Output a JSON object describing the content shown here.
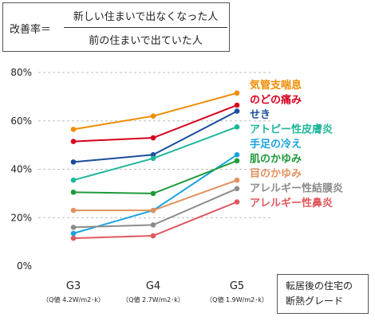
{
  "formula": {
    "label": "改善率＝",
    "numerator": "新しい住まいで出なくなった人",
    "denominator": "前の住まいで出ていた人"
  },
  "grade_box": {
    "line1": "転居後の住宅の",
    "line2": "断熱グレード"
  },
  "chart_data": {
    "type": "line",
    "title": "",
    "xlabel": "",
    "ylabel": "",
    "ylim": [
      0,
      80
    ],
    "yticks": [
      0,
      20,
      40,
      60,
      80
    ],
    "ytick_labels": [
      "0%",
      "20%",
      "40%",
      "60%",
      "80%"
    ],
    "grid": "horizontal-dashed",
    "categories": [
      "G3",
      "G4",
      "G5"
    ],
    "category_sublabels": [
      "（Q値 4.2W/m2･k）",
      "（Q値 2.7W/m2･k）",
      "（Q値 1.9W/m2･k）"
    ],
    "legend_placement": "right",
    "series": [
      {
        "name": "気管支喘息",
        "color": "#f08c00",
        "values": [
          56.5,
          62,
          71.5
        ]
      },
      {
        "name": "のどの痛み",
        "color": "#d7001d",
        "values": [
          51.5,
          53,
          66.5
        ]
      },
      {
        "name": "せき",
        "color": "#1a4e9c",
        "values": [
          43,
          46,
          64
        ]
      },
      {
        "name": "アトピー性皮膚炎",
        "color": "#1fb79a",
        "values": [
          35.5,
          44.5,
          57.5
        ]
      },
      {
        "name": "手足の冷え",
        "color": "#1aa3de",
        "values": [
          13.5,
          23,
          46
        ]
      },
      {
        "name": "肌のかゆみ",
        "color": "#1e9a3a",
        "values": [
          30.5,
          30,
          43.5
        ]
      },
      {
        "name": "目のかゆみ",
        "color": "#e3915f",
        "values": [
          23,
          23,
          35.5
        ]
      },
      {
        "name": "アレルギー性結膜炎",
        "color": "#8c8c8c",
        "values": [
          16,
          17,
          32
        ]
      },
      {
        "name": "アレルギー性鼻炎",
        "color": "#e0595f",
        "values": [
          11.5,
          12.5,
          26.5
        ]
      }
    ]
  }
}
